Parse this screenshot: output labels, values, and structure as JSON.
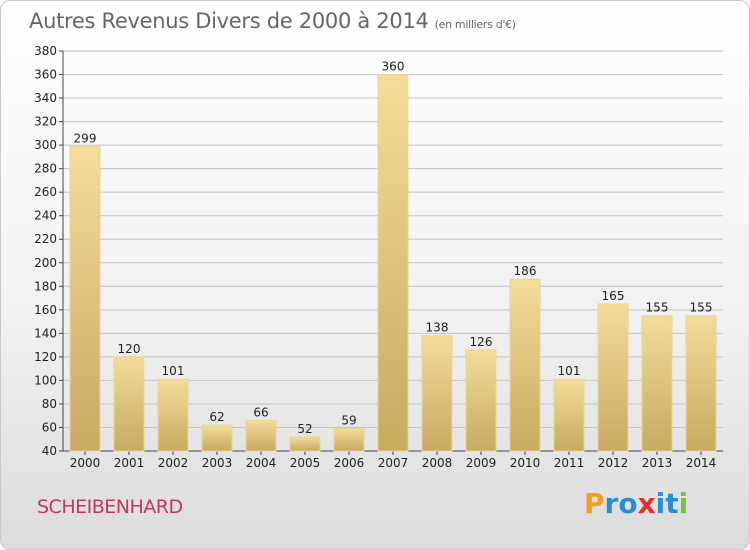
{
  "title": "Autres Revenus Divers de 2000 à 2014",
  "subtitle": "(en milliers d'€)",
  "commune": "SCHEIBENHARD",
  "logo": {
    "text": "Proxiti",
    "letters": [
      "P",
      "r",
      "o",
      "x",
      "i",
      "t",
      "i"
    ],
    "colors": [
      "#f0a020",
      "#2a8fd0",
      "#2a8fd0",
      "#e03030",
      "#2a8fd0",
      "#2a8fd0",
      "#7ac043"
    ]
  },
  "colors": {
    "bar_light": "#f5dc9a",
    "bar_dark": "#c8aa60",
    "grid": "#c4c4c4"
  },
  "chart_data": {
    "type": "bar",
    "categories": [
      "2000",
      "2001",
      "2002",
      "2003",
      "2004",
      "2005",
      "2006",
      "2007",
      "2008",
      "2009",
      "2010",
      "2011",
      "2012",
      "2013",
      "2014"
    ],
    "values": [
      299,
      120,
      101,
      62,
      66,
      52,
      59,
      360,
      138,
      126,
      186,
      101,
      165,
      155,
      155
    ],
    "ylim": [
      40,
      380
    ],
    "yticks": [
      40,
      60,
      80,
      100,
      120,
      140,
      160,
      180,
      200,
      220,
      240,
      260,
      280,
      300,
      320,
      340,
      360,
      380
    ],
    "grid": true,
    "data_labels": true
  }
}
